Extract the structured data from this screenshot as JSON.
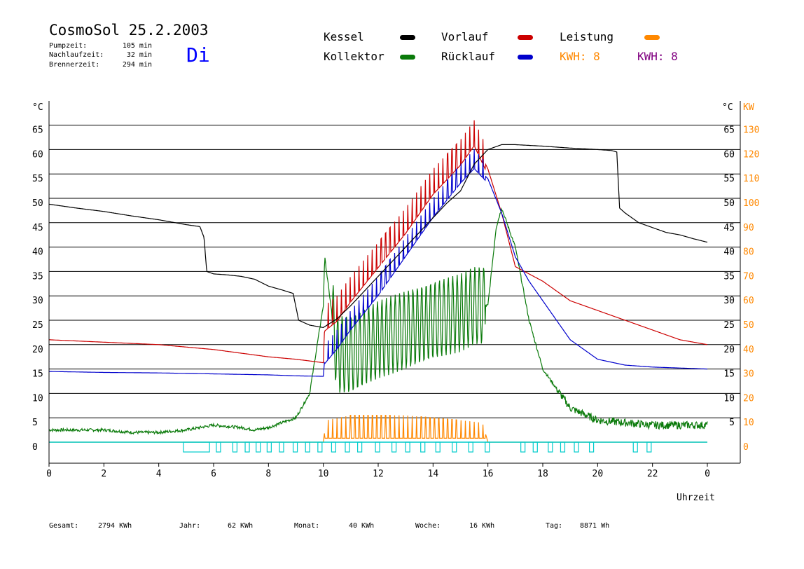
{
  "header": {
    "title": "CosmoSol 25.2.2003",
    "pump_label": "Pumpzeit:",
    "pump_value": "105 min",
    "nachlauf_label": "Nachlaufzeit:",
    "nachlauf_value": "32 min",
    "brenner_label": "Brennerzeit:",
    "brenner_value": "294 min",
    "weekday": "Di"
  },
  "legend": {
    "kessel": "Kessel",
    "kollektor": "Kollektor",
    "vorlauf": "Vorlauf",
    "ruecklauf": "Rücklauf",
    "leistung": "Leistung",
    "kwh1": "KWH: 8",
    "kwh2": "KWH: 8"
  },
  "footer": {
    "gesamt_label": "Gesamt:",
    "gesamt_value": "2794 KWh",
    "jahr_label": "Jahr:",
    "jahr_value": "62 KWh",
    "monat_label": "Monat:",
    "monat_value": "40 KWh",
    "woche_label": "Woche:",
    "woche_value": "16 KWh",
    "tag_label": "Tag:",
    "tag_value": "8871 Wh"
  },
  "colors": {
    "kessel": "#000000",
    "kollektor": "#0a7a0a",
    "vorlauf": "#cc0000",
    "ruecklauf": "#0000cc",
    "leistung": "#ff8800",
    "kwh2": "#800080",
    "pump": "#00cccc",
    "weekday": "#0000ff",
    "grid": "#000000"
  },
  "chart_data": {
    "type": "line",
    "xlabel": "Uhrzeit",
    "ylabel_left": "°C",
    "ylabel_right_c": "°C",
    "ylabel_right_kw": "KW",
    "xlim": [
      0,
      24
    ],
    "ylim": [
      0,
      65
    ],
    "ylim_right_kw": [
      0,
      130
    ],
    "x_ticks": [
      "0",
      "2",
      "4",
      "6",
      "8",
      "10",
      "12",
      "14",
      "16",
      "18",
      "20",
      "22",
      "0"
    ],
    "y_ticks": [
      "0",
      "5",
      "10",
      "15",
      "20",
      "25",
      "30",
      "35",
      "40",
      "45",
      "50",
      "55",
      "60",
      "65"
    ],
    "y_ticks_right_c": [
      "5",
      "10",
      "15",
      "20",
      "25",
      "30",
      "35",
      "40",
      "45",
      "50",
      "55",
      "60",
      "65"
    ],
    "y_ticks_right_kw": [
      "0",
      "10",
      "20",
      "30",
      "40",
      "50",
      "60",
      "70",
      "80",
      "90",
      "100",
      "110",
      "120",
      "130"
    ],
    "grid": "horizontal",
    "series": [
      {
        "name": "Kessel",
        "x": [
          0,
          1,
          2,
          3,
          4,
          5,
          5.5,
          5.65,
          5.75,
          6,
          6.5,
          7,
          7.5,
          8,
          8.5,
          8.9,
          9.1,
          9.5,
          10,
          10.5,
          11,
          11.5,
          12,
          12.5,
          13,
          13.5,
          14,
          14.5,
          15,
          15.5,
          16,
          16.5,
          17,
          18,
          19,
          20,
          20.5,
          20.7,
          20.8,
          21,
          21.5,
          22,
          22.5,
          23,
          23.5,
          24
        ],
        "values": [
          48.8,
          48,
          47.3,
          46.4,
          45.6,
          44.6,
          44.2,
          42,
          35,
          34.5,
          34.3,
          34,
          33.4,
          32,
          31.2,
          30.5,
          25,
          24,
          23.5,
          25.3,
          28,
          31,
          34,
          37,
          40,
          43,
          46,
          49,
          51.5,
          57,
          60,
          61,
          61,
          60.7,
          60.3,
          60,
          59.8,
          59.5,
          48,
          47,
          45,
          44,
          43,
          42.5,
          41.7,
          41
        ]
      },
      {
        "name": "Kollektor",
        "x": [
          0,
          2,
          3,
          4,
          5,
          6,
          7,
          7.5,
          8,
          9,
          9.5,
          10,
          10.05,
          10.5,
          11,
          12,
          13,
          14,
          15,
          15.5,
          16,
          16.3,
          16.5,
          17,
          17.5,
          18,
          18.5,
          19,
          20,
          21,
          22,
          23,
          24
        ],
        "values": [
          2.5,
          2.5,
          2,
          2,
          2.5,
          3.5,
          3,
          2.5,
          3,
          5,
          10,
          28,
          38,
          18,
          18,
          21,
          23,
          25,
          26.5,
          28,
          28,
          44,
          48,
          40,
          25,
          15,
          11,
          7,
          4.5,
          4,
          3.5,
          3.5,
          3.5
        ]
      },
      {
        "name": "Vorlauf",
        "x": [
          0,
          2,
          4,
          6,
          8,
          9,
          10,
          10.05,
          10.5,
          11,
          12,
          13,
          14,
          15,
          15.5,
          16,
          16.5,
          17,
          18,
          19,
          20,
          21,
          22,
          23,
          24
        ],
        "values": [
          21,
          20.5,
          20,
          19,
          17.5,
          17,
          16.3,
          24,
          26,
          30,
          37,
          44,
          52,
          58,
          62,
          56,
          47,
          36,
          33,
          29,
          27,
          25,
          23,
          21,
          20
        ]
      },
      {
        "name": "Rücklauf",
        "x": [
          0,
          2,
          4,
          6,
          8,
          9,
          10,
          10.05,
          10.5,
          11,
          12,
          13,
          14,
          15,
          15.5,
          16,
          16.5,
          17,
          17.5,
          18,
          19,
          20,
          21,
          22,
          23,
          24
        ],
        "values": [
          14.5,
          14.3,
          14.2,
          14,
          13.8,
          13.6,
          13.5,
          17,
          20,
          24,
          31,
          39,
          47,
          54,
          57,
          54,
          47,
          38,
          33,
          29,
          21,
          17,
          15.8,
          15.4,
          15.2,
          15
        ]
      },
      {
        "name": "Leistung",
        "x": [
          0,
          10,
          10.1,
          11,
          12,
          13,
          14,
          15,
          15.8,
          16,
          24
        ],
        "values": [
          0,
          0,
          4.5,
          5.5,
          5.5,
          5.5,
          5,
          4.5,
          4,
          0,
          0
        ]
      },
      {
        "name": "Pumpe",
        "x": [
          0,
          24
        ],
        "values": [
          0,
          0
        ]
      }
    ]
  }
}
